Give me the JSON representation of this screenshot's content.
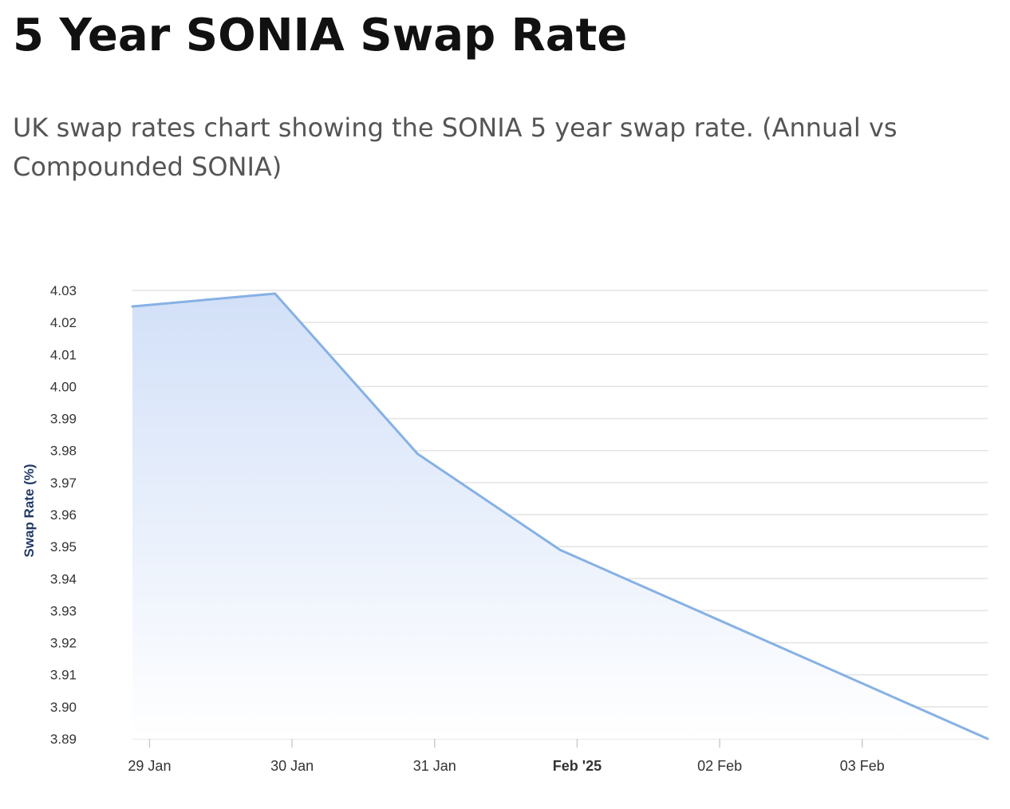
{
  "header": {
    "title": "5 Year SONIA Swap Rate",
    "subtitle": "UK swap rates chart showing the SONIA 5 year swap rate. (Annual vs Compounded SONIA)"
  },
  "chart_data": {
    "type": "area",
    "title": "",
    "xlabel": "",
    "ylabel": "Swap Rate (%)",
    "ylim": [
      3.89,
      4.03
    ],
    "y_ticks": [
      "4.03",
      "4.02",
      "4.01",
      "4.00",
      "3.99",
      "3.98",
      "3.97",
      "3.96",
      "3.95",
      "3.94",
      "3.93",
      "3.92",
      "3.91",
      "3.90",
      "3.89"
    ],
    "x_range_days": [
      -0.12,
      5.88
    ],
    "x_ticks": [
      {
        "day": 0,
        "label": "29 Jan",
        "bold": false
      },
      {
        "day": 1,
        "label": "30 Jan",
        "bold": false
      },
      {
        "day": 2,
        "label": "31 Jan",
        "bold": false
      },
      {
        "day": 3,
        "label": "Feb '25",
        "bold": true
      },
      {
        "day": 4,
        "label": "02 Feb",
        "bold": false
      },
      {
        "day": 5,
        "label": "03 Feb",
        "bold": false
      }
    ],
    "series": [
      {
        "name": "5 Year SONIA Swap Rate",
        "points": [
          {
            "day": -0.12,
            "value": 4.025
          },
          {
            "day": 0.88,
            "value": 4.029
          },
          {
            "day": 1.88,
            "value": 3.979
          },
          {
            "day": 2.88,
            "value": 3.949
          },
          {
            "day": 5.88,
            "value": 3.89
          }
        ]
      }
    ],
    "grid": true,
    "line_color": "#86b1e4",
    "fill_top_color": "#d2e0f8",
    "fill_bottom_color": "#ffffff",
    "grid_color": "#e2e2e2",
    "axis_title_color": "#223a66"
  }
}
